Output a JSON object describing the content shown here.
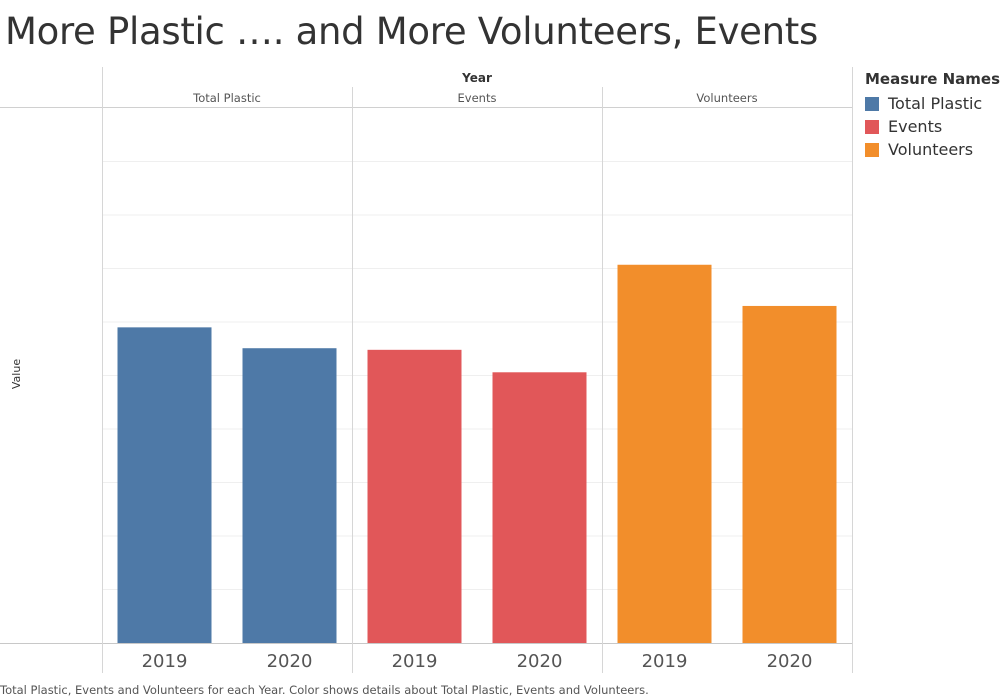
{
  "title": "More Plastic …. and More Volunteers, Events",
  "caption": "Total Plastic, Events and Volunteers for each Year.  Color shows details about Total Plastic, Events and Volunteers.",
  "legend": {
    "title": "Measure Names",
    "items": [
      {
        "label": "Total Plastic",
        "color": "#4e79a7"
      },
      {
        "label": "Events",
        "color": "#e15759"
      },
      {
        "label": "Volunteers",
        "color": "#f28e2b"
      }
    ]
  },
  "chart_data": {
    "type": "bar",
    "column_header": "Year",
    "ylabel": "Value",
    "ylim": [
      0,
      100
    ],
    "grid": true,
    "legend_position": "right",
    "panels": [
      {
        "name": "Total Plastic",
        "color": "#4e79a7",
        "categories": [
          "2019",
          "2020"
        ],
        "values": [
          59.0,
          55.1
        ]
      },
      {
        "name": "Events",
        "color": "#e15759",
        "categories": [
          "2019",
          "2020"
        ],
        "values": [
          54.8,
          50.6
        ]
      },
      {
        "name": "Volunteers",
        "color": "#f28e2b",
        "categories": [
          "2019",
          "2020"
        ],
        "values": [
          70.7,
          63.0
        ]
      }
    ]
  }
}
